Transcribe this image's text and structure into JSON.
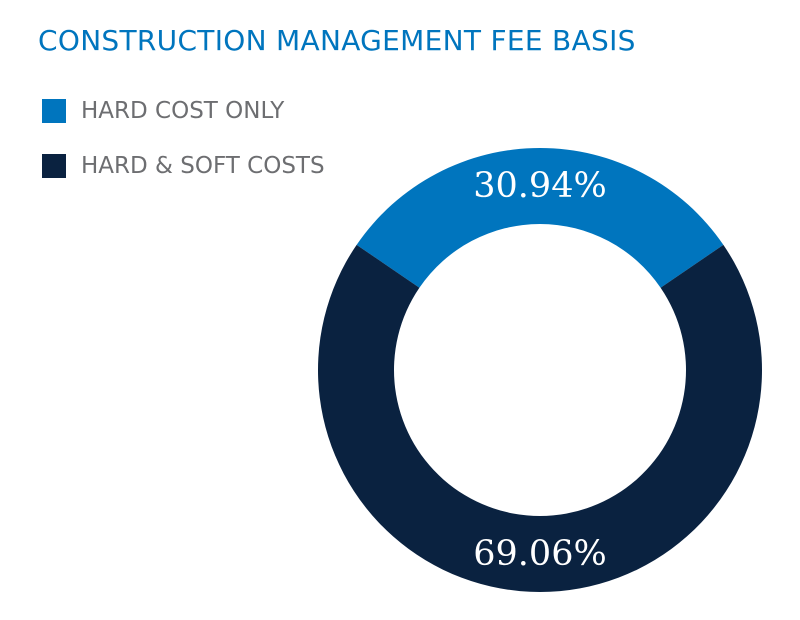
{
  "chart_data": {
    "type": "pie",
    "title": "CONSTRUCTION MANAGEMENT FEE BASIS",
    "categories": [
      "HARD COST ONLY",
      "HARD & SOFT COSTS"
    ],
    "values": [
      30.94,
      69.06
    ],
    "data_labels": [
      "30.94%",
      "69.06%"
    ],
    "colors": [
      "#0075be",
      "#0a2240"
    ],
    "legend_placement": "top-left",
    "style": "donut"
  },
  "colors": {
    "title": "#0075be",
    "legend_text": "#6d6e71"
  }
}
